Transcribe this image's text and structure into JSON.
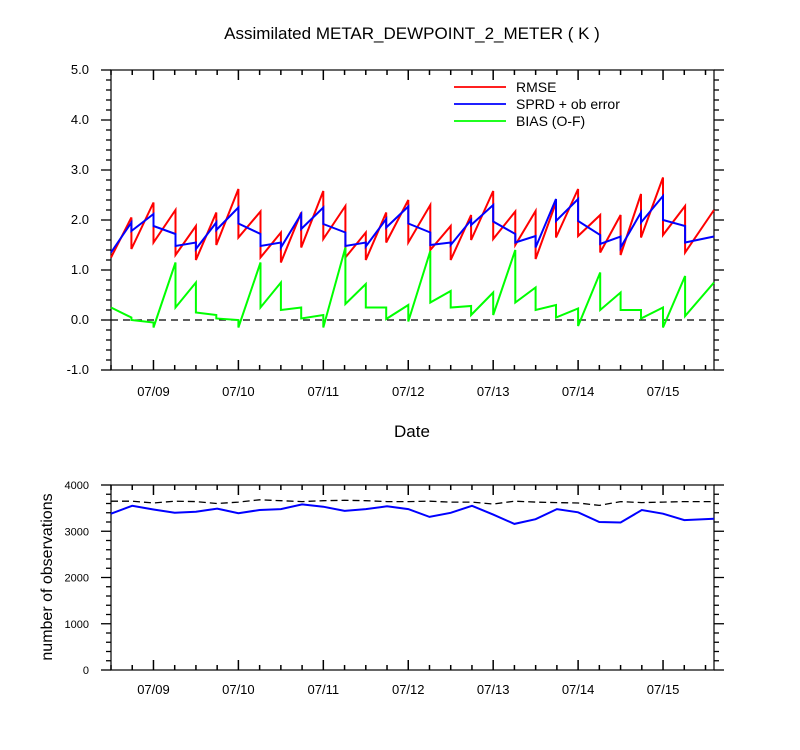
{
  "chart_data": [
    {
      "type": "line",
      "title": "Assimilated METAR_DEWPOINT_2_METER ( K )",
      "xlabel": "Date",
      "ylabel": "",
      "x_tick_labels": [
        "07/09",
        "07/10",
        "07/11",
        "07/12",
        "07/13",
        "07/14",
        "07/15"
      ],
      "y_tick_labels": [
        "-1.0",
        "0.0",
        "1.0",
        "2.0",
        "3.0",
        "4.0",
        "5.0"
      ],
      "xlim": [
        -0.5,
        6.6
      ],
      "ylim": [
        -1.0,
        5.0
      ],
      "grid": false,
      "legend_position": "top-right",
      "reference_line": {
        "y": 0.0,
        "style": "dashed",
        "color": "#000000"
      },
      "series": [
        {
          "name": "RMSE",
          "color": "#ff0000",
          "points": [
            [
              -0.5,
              1.25
            ],
            [
              -0.26,
              2.05
            ],
            [
              -0.26,
              1.42
            ],
            [
              0,
              2.35
            ],
            [
              0,
              1.55
            ],
            [
              0.26,
              2.2
            ],
            [
              0.26,
              1.3
            ],
            [
              0.5,
              1.88
            ],
            [
              0.5,
              1.2
            ],
            [
              0.74,
              2.15
            ],
            [
              0.74,
              1.5
            ],
            [
              1,
              2.62
            ],
            [
              1,
              1.65
            ],
            [
              1.26,
              2.17
            ],
            [
              1.26,
              1.25
            ],
            [
              1.5,
              1.75
            ],
            [
              1.5,
              1.15
            ],
            [
              1.74,
              2.15
            ],
            [
              1.74,
              1.45
            ],
            [
              2,
              2.58
            ],
            [
              2,
              1.62
            ],
            [
              2.26,
              2.28
            ],
            [
              2.26,
              1.25
            ],
            [
              2.5,
              1.75
            ],
            [
              2.5,
              1.2
            ],
            [
              2.74,
              2.15
            ],
            [
              2.74,
              1.55
            ],
            [
              3,
              2.4
            ],
            [
              3,
              1.55
            ],
            [
              3.26,
              2.3
            ],
            [
              3.26,
              1.4
            ],
            [
              3.5,
              1.88
            ],
            [
              3.5,
              1.2
            ],
            [
              3.74,
              2.1
            ],
            [
              3.74,
              1.6
            ],
            [
              4,
              2.58
            ],
            [
              4,
              1.62
            ],
            [
              4.26,
              2.17
            ],
            [
              4.26,
              1.5
            ],
            [
              4.5,
              2.18
            ],
            [
              4.5,
              1.22
            ],
            [
              4.74,
              2.35
            ],
            [
              4.74,
              1.65
            ],
            [
              5,
              2.62
            ],
            [
              5,
              1.68
            ],
            [
              5.26,
              2.1
            ],
            [
              5.26,
              1.35
            ],
            [
              5.5,
              2.1
            ],
            [
              5.5,
              1.3
            ],
            [
              5.74,
              2.52
            ],
            [
              5.74,
              1.65
            ],
            [
              6,
              2.85
            ],
            [
              6,
              1.7
            ],
            [
              6.26,
              2.28
            ],
            [
              6.26,
              1.35
            ],
            [
              6.6,
              2.2
            ]
          ]
        },
        {
          "name": "SPRD + ob error",
          "color": "#0000ff",
          "points": [
            [
              -0.5,
              1.35
            ],
            [
              -0.26,
              1.95
            ],
            [
              -0.26,
              1.78
            ],
            [
              0,
              2.12
            ],
            [
              0,
              1.88
            ],
            [
              0.26,
              1.72
            ],
            [
              0.26,
              1.48
            ],
            [
              0.5,
              1.55
            ],
            [
              0.5,
              1.42
            ],
            [
              0.74,
              1.95
            ],
            [
              0.74,
              1.8
            ],
            [
              1,
              2.25
            ],
            [
              1,
              1.93
            ],
            [
              1.26,
              1.72
            ],
            [
              1.26,
              1.48
            ],
            [
              1.5,
              1.55
            ],
            [
              1.5,
              1.45
            ],
            [
              1.74,
              2.12
            ],
            [
              1.74,
              1.82
            ],
            [
              2,
              2.25
            ],
            [
              2,
              1.92
            ],
            [
              2.26,
              1.75
            ],
            [
              2.26,
              1.48
            ],
            [
              2.5,
              1.55
            ],
            [
              2.5,
              1.47
            ],
            [
              2.74,
              2.02
            ],
            [
              2.74,
              1.85
            ],
            [
              3,
              2.27
            ],
            [
              3,
              1.93
            ],
            [
              3.26,
              1.75
            ],
            [
              3.26,
              1.5
            ],
            [
              3.5,
              1.55
            ],
            [
              3.5,
              1.5
            ],
            [
              3.74,
              2.0
            ],
            [
              3.74,
              1.9
            ],
            [
              4,
              2.3
            ],
            [
              4,
              1.97
            ],
            [
              4.26,
              1.72
            ],
            [
              4.26,
              1.55
            ],
            [
              4.5,
              1.68
            ],
            [
              4.5,
              1.45
            ],
            [
              4.74,
              2.42
            ],
            [
              4.74,
              1.98
            ],
            [
              5,
              2.42
            ],
            [
              5,
              1.98
            ],
            [
              5.26,
              1.7
            ],
            [
              5.26,
              1.52
            ],
            [
              5.5,
              1.67
            ],
            [
              5.5,
              1.45
            ],
            [
              5.74,
              2.15
            ],
            [
              5.74,
              1.95
            ],
            [
              6,
              2.48
            ],
            [
              6,
              2.0
            ],
            [
              6.26,
              1.88
            ],
            [
              6.26,
              1.55
            ],
            [
              6.6,
              1.67
            ]
          ]
        },
        {
          "name": "BIAS (O-F)",
          "color": "#00ff00",
          "points": [
            [
              -0.5,
              0.25
            ],
            [
              -0.26,
              0.05
            ],
            [
              -0.26,
              0.0
            ],
            [
              0,
              -0.05
            ],
            [
              0,
              -0.15
            ],
            [
              0.26,
              1.15
            ],
            [
              0.26,
              0.25
            ],
            [
              0.5,
              0.75
            ],
            [
              0.5,
              0.15
            ],
            [
              0.74,
              0.1
            ],
            [
              0.74,
              0.03
            ],
            [
              1,
              0.0
            ],
            [
              1,
              -0.15
            ],
            [
              1.26,
              1.15
            ],
            [
              1.26,
              0.25
            ],
            [
              1.5,
              0.75
            ],
            [
              1.5,
              0.2
            ],
            [
              1.74,
              0.25
            ],
            [
              1.74,
              0.03
            ],
            [
              2,
              0.1
            ],
            [
              2,
              -0.15
            ],
            [
              2.26,
              1.45
            ],
            [
              2.26,
              0.32
            ],
            [
              2.5,
              0.72
            ],
            [
              2.5,
              0.25
            ],
            [
              2.74,
              0.25
            ],
            [
              2.74,
              0.02
            ],
            [
              3,
              0.3
            ],
            [
              3,
              -0.03
            ],
            [
              3.26,
              1.38
            ],
            [
              3.26,
              0.35
            ],
            [
              3.5,
              0.58
            ],
            [
              3.5,
              0.25
            ],
            [
              3.74,
              0.28
            ],
            [
              3.74,
              0.1
            ],
            [
              4,
              0.55
            ],
            [
              4,
              0.1
            ],
            [
              4.26,
              1.4
            ],
            [
              4.26,
              0.35
            ],
            [
              4.5,
              0.65
            ],
            [
              4.5,
              0.2
            ],
            [
              4.74,
              0.3
            ],
            [
              4.74,
              0.05
            ],
            [
              5,
              0.23
            ],
            [
              5,
              -0.12
            ],
            [
              5.26,
              0.95
            ],
            [
              5.26,
              0.2
            ],
            [
              5.5,
              0.55
            ],
            [
              5.5,
              0.2
            ],
            [
              5.74,
              0.2
            ],
            [
              5.74,
              0.03
            ],
            [
              6,
              0.25
            ],
            [
              6,
              -0.15
            ],
            [
              6.26,
              0.88
            ],
            [
              6.26,
              0.08
            ],
            [
              6.6,
              0.75
            ]
          ]
        }
      ]
    },
    {
      "type": "line",
      "title": "",
      "xlabel": "",
      "ylabel": "number of observations",
      "x_tick_labels": [
        "07/09",
        "07/10",
        "07/11",
        "07/12",
        "07/13",
        "07/14",
        "07/15"
      ],
      "y_tick_labels": [
        "0",
        "1000",
        "2000",
        "3000",
        "4000"
      ],
      "xlim": [
        -0.5,
        6.6
      ],
      "ylim": [
        0,
        4000
      ],
      "grid": false,
      "legend_position": "none",
      "series": [
        {
          "color": "#000000",
          "style": "dashed",
          "points": [
            [
              -0.5,
              3650
            ],
            [
              -0.25,
              3650
            ],
            [
              0,
              3610
            ],
            [
              0.25,
              3650
            ],
            [
              0.5,
              3640
            ],
            [
              0.75,
              3600
            ],
            [
              1,
              3630
            ],
            [
              1.25,
              3680
            ],
            [
              1.5,
              3660
            ],
            [
              1.75,
              3640
            ],
            [
              2,
              3660
            ],
            [
              2.25,
              3670
            ],
            [
              2.5,
              3660
            ],
            [
              2.75,
              3640
            ],
            [
              3,
              3640
            ],
            [
              3.25,
              3650
            ],
            [
              3.5,
              3630
            ],
            [
              3.75,
              3630
            ],
            [
              4,
              3590
            ],
            [
              4.25,
              3650
            ],
            [
              4.5,
              3630
            ],
            [
              4.75,
              3620
            ],
            [
              5,
              3610
            ],
            [
              5.25,
              3560
            ],
            [
              5.5,
              3640
            ],
            [
              5.75,
              3620
            ],
            [
              6,
              3630
            ],
            [
              6.25,
              3640
            ],
            [
              6.6,
              3640
            ]
          ]
        },
        {
          "color": "#0000ff",
          "style": "solid",
          "points": [
            [
              -0.5,
              3380
            ],
            [
              -0.25,
              3550
            ],
            [
              0,
              3470
            ],
            [
              0.25,
              3400
            ],
            [
              0.5,
              3420
            ],
            [
              0.75,
              3490
            ],
            [
              1,
              3390
            ],
            [
              1.25,
              3460
            ],
            [
              1.5,
              3480
            ],
            [
              1.75,
              3580
            ],
            [
              2,
              3530
            ],
            [
              2.25,
              3440
            ],
            [
              2.5,
              3480
            ],
            [
              2.75,
              3540
            ],
            [
              3,
              3480
            ],
            [
              3.25,
              3310
            ],
            [
              3.5,
              3400
            ],
            [
              3.75,
              3550
            ],
            [
              4,
              3360
            ],
            [
              4.25,
              3160
            ],
            [
              4.5,
              3260
            ],
            [
              4.75,
              3480
            ],
            [
              5,
              3410
            ],
            [
              5.25,
              3200
            ],
            [
              5.5,
              3190
            ],
            [
              5.75,
              3460
            ],
            [
              6,
              3380
            ],
            [
              6.25,
              3240
            ],
            [
              6.6,
              3270
            ]
          ]
        }
      ]
    }
  ]
}
